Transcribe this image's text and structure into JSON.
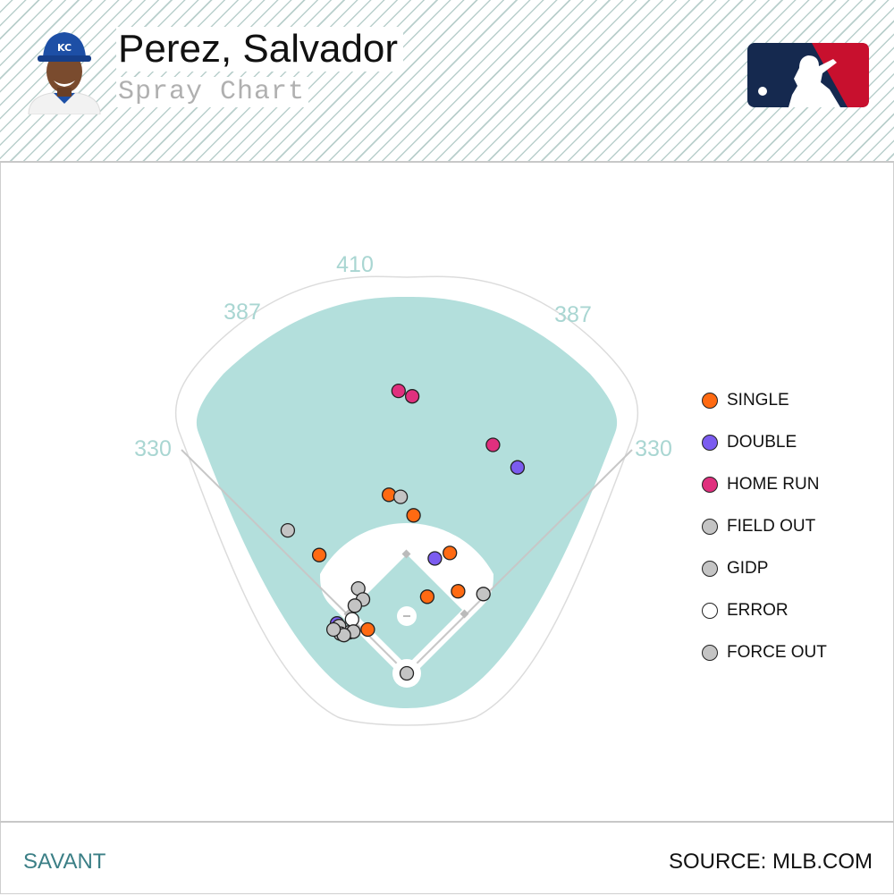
{
  "header": {
    "player_name": "Perez, Salvador",
    "subtitle": "Spray Chart"
  },
  "footer": {
    "left_text": "SAVANT",
    "right_text": "SOURCE: MLB.COM"
  },
  "colors": {
    "single": "#ff6a12",
    "double": "#7b5cf0",
    "home_run": "#e0307e",
    "field_out": "#c4c4c4",
    "gidp": "#c4c4c4",
    "error": "#ffffff",
    "force_out": "#c4c4c4",
    "grass": "#b3dfdc",
    "infield_dirt": "#ffffff",
    "accent_text": "#3b7f86"
  },
  "chart_data": {
    "type": "scatter",
    "title": "Spray Chart",
    "distance_labels": [
      "330",
      "387",
      "410",
      "387",
      "330"
    ],
    "legend": [
      {
        "key": "single",
        "label": "SINGLE",
        "color": "#ff6a12"
      },
      {
        "key": "double",
        "label": "DOUBLE",
        "color": "#7b5cf0"
      },
      {
        "key": "home_run",
        "label": "HOME RUN",
        "color": "#e0307e"
      },
      {
        "key": "field_out",
        "label": "FIELD OUT",
        "color": "#c4c4c4"
      },
      {
        "key": "gidp",
        "label": "GIDP",
        "color": "#c4c4c4"
      },
      {
        "key": "error",
        "label": "ERROR",
        "color": "#ffffff"
      },
      {
        "key": "force_out",
        "label": "FORCE OUT",
        "color": "#c4c4c4"
      }
    ],
    "x_range": [
      -330,
      330
    ],
    "y_range": [
      0,
      430
    ],
    "points": [
      {
        "x": -12,
        "y": 413,
        "type": "home_run"
      },
      {
        "x": 8,
        "y": 405,
        "type": "home_run"
      },
      {
        "x": 126,
        "y": 334,
        "type": "home_run"
      },
      {
        "x": 162,
        "y": 301,
        "type": "double"
      },
      {
        "x": -26,
        "y": 261,
        "type": "single"
      },
      {
        "x": -9,
        "y": 258,
        "type": "field_out"
      },
      {
        "x": 10,
        "y": 231,
        "type": "single"
      },
      {
        "x": 63,
        "y": 176,
        "type": "single"
      },
      {
        "x": 41,
        "y": 168,
        "type": "double"
      },
      {
        "x": -174,
        "y": 209,
        "type": "field_out"
      },
      {
        "x": -128,
        "y": 173,
        "type": "single"
      },
      {
        "x": 112,
        "y": 116,
        "type": "field_out"
      },
      {
        "x": 75,
        "y": 120,
        "type": "single"
      },
      {
        "x": -71,
        "y": 124,
        "type": "field_out"
      },
      {
        "x": -64,
        "y": 108,
        "type": "field_out"
      },
      {
        "x": -76,
        "y": 99,
        "type": "field_out"
      },
      {
        "x": -80,
        "y": 79,
        "type": "error"
      },
      {
        "x": -57,
        "y": 64,
        "type": "single"
      },
      {
        "x": 30,
        "y": 112,
        "type": "single"
      },
      {
        "x": -84,
        "y": 60,
        "type": "field_out"
      },
      {
        "x": -78,
        "y": 61,
        "type": "gidp"
      },
      {
        "x": -102,
        "y": 73,
        "type": "double"
      },
      {
        "x": -99,
        "y": 69,
        "type": "force_out"
      },
      {
        "x": -97,
        "y": 58,
        "type": "field_out"
      },
      {
        "x": -92,
        "y": 56,
        "type": "field_out"
      },
      {
        "x": -107,
        "y": 64,
        "type": "field_out"
      },
      {
        "x": 0,
        "y": 0,
        "type": "field_out"
      }
    ]
  }
}
